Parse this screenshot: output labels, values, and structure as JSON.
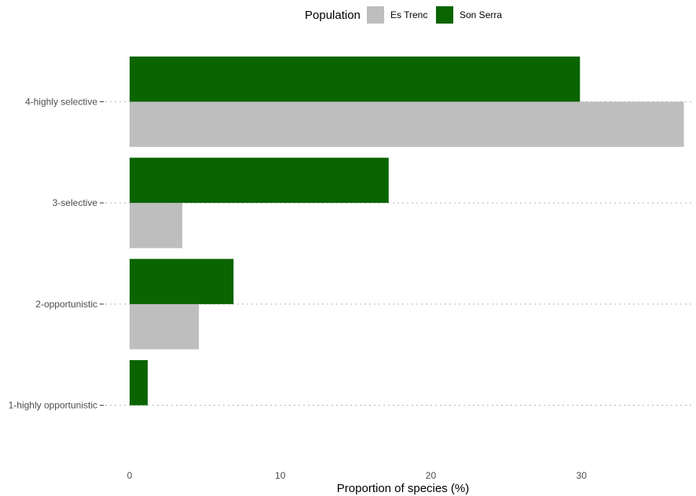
{
  "chart_data": {
    "type": "bar",
    "orientation": "horizontal",
    "categories": [
      "1-highly opportunistic",
      "2-opportunistic",
      "3-selective",
      "4-highly selective"
    ],
    "series": [
      {
        "name": "Es Trenc",
        "color": "#bebebe",
        "values": [
          0,
          4.6,
          3.5,
          36.8
        ]
      },
      {
        "name": "Son Serra",
        "color": "#0a6400",
        "values": [
          1.2,
          6.9,
          17.2,
          29.9
        ]
      }
    ],
    "xlabel": "Proportion of species (%)",
    "ylabel": "",
    "xlim": [
      0,
      37.5
    ],
    "xticks": [
      0,
      10,
      20,
      30
    ],
    "legend": {
      "title": "Population",
      "position": "top"
    },
    "grid": {
      "horizontal": "dotted",
      "vertical": false
    }
  }
}
